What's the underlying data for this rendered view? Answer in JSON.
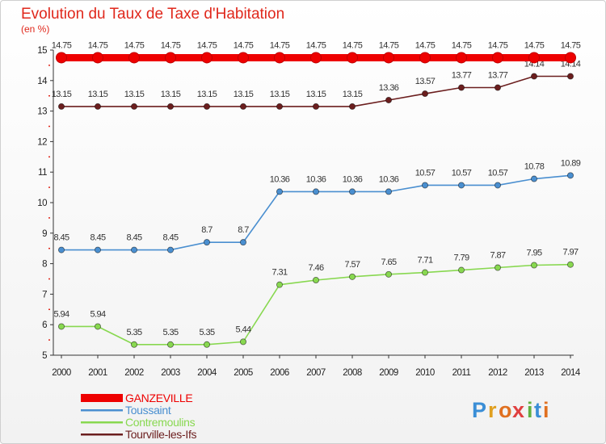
{
  "chart_data": {
    "type": "line",
    "title": "Evolution du Taux de Taxe d'Habitation",
    "subtitle": "(en %)",
    "xlabel": "",
    "ylabel": "",
    "ylim": [
      5,
      15
    ],
    "yticks": [
      5,
      6,
      7,
      8,
      9,
      10,
      11,
      12,
      13,
      14,
      15
    ],
    "ytick_labels": [
      "5",
      "6",
      "7",
      "8",
      "9",
      "10",
      "11",
      "12",
      "13",
      "14",
      "15"
    ],
    "x": [
      "2000",
      "2001",
      "2002",
      "2003",
      "2004",
      "2005",
      "2006",
      "2007",
      "2008",
      "2009",
      "2010",
      "2011",
      "2012",
      "2013",
      "2014"
    ],
    "grid": false,
    "legend_position": "bottom-left",
    "series": [
      {
        "name": "GANZEVILLE",
        "color": "#ee0000",
        "values": [
          14.75,
          14.75,
          14.75,
          14.75,
          14.75,
          14.75,
          14.75,
          14.75,
          14.75,
          14.75,
          14.75,
          14.75,
          14.75,
          14.75,
          14.75
        ],
        "labels": [
          "14.75",
          "14.75",
          "14.75",
          "14.75",
          "14.75",
          "14.75",
          "14.75",
          "14.75",
          "14.75",
          "14.75",
          "14.75",
          "14.75",
          "14.75",
          "14.75",
          "14.75"
        ]
      },
      {
        "name": "Toussaint",
        "color": "#4a8fd0",
        "values": [
          8.45,
          8.45,
          8.45,
          8.45,
          8.7,
          8.7,
          10.36,
          10.36,
          10.36,
          10.36,
          10.57,
          10.57,
          10.57,
          10.78,
          10.89
        ],
        "labels": [
          "8.45",
          "8.45",
          "8.45",
          "8.45",
          "8.7",
          "8.7",
          "10.36",
          "10.36",
          "10.36",
          "10.36",
          "10.57",
          "10.57",
          "10.57",
          "10.78",
          "10.89"
        ]
      },
      {
        "name": "Contremoulins",
        "color": "#88d850",
        "values": [
          5.94,
          5.94,
          5.35,
          5.35,
          5.35,
          5.44,
          7.31,
          7.46,
          7.57,
          7.65,
          7.71,
          7.79,
          7.87,
          7.95,
          7.97
        ],
        "labels": [
          "5.94",
          "5.94",
          "5.35",
          "5.35",
          "5.35",
          "5.44",
          "7.31",
          "7.46",
          "7.57",
          "7.65",
          "7.71",
          "7.79",
          "7.87",
          "7.95",
          "7.97"
        ]
      },
      {
        "name": "Tourville-les-Ifs",
        "color": "#6b1e1e",
        "values": [
          13.15,
          13.15,
          13.15,
          13.15,
          13.15,
          13.15,
          13.15,
          13.15,
          13.15,
          13.36,
          13.57,
          13.77,
          13.77,
          14.14,
          14.14
        ],
        "labels": [
          "13.15",
          "13.15",
          "13.15",
          "13.15",
          "13.15",
          "13.15",
          "13.15",
          "13.15",
          "13.15",
          "13.36",
          "13.57",
          "13.77",
          "13.77",
          "14.14",
          "14.14"
        ]
      }
    ]
  },
  "brand": {
    "letters": [
      "P",
      "r",
      "o",
      "x",
      "i",
      "t",
      "i"
    ],
    "colors": [
      "#3a8ed6",
      "#e0a020",
      "#e07020",
      "#e04040",
      "#60b040",
      "#3a8ed6",
      "#e07020"
    ]
  }
}
